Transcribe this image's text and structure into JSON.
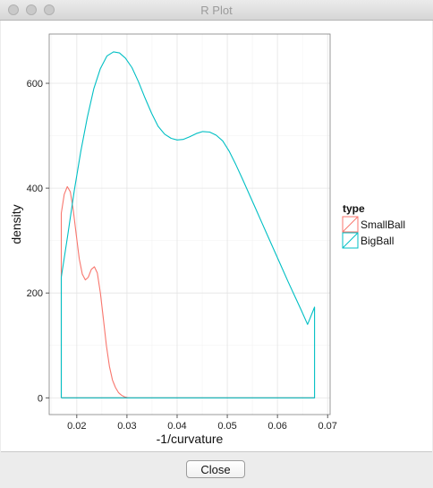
{
  "window": {
    "title": "R Plot",
    "close_button_label": "Close"
  },
  "chart_data": {
    "type": "line",
    "subtype": "density",
    "title": "",
    "xlabel": "-1/curvature",
    "ylabel": "density",
    "xlim": [
      0.0145,
      0.0705
    ],
    "ylim": [
      -32,
      694
    ],
    "xticks": [
      0.02,
      0.03,
      0.04,
      0.05,
      0.06,
      0.07
    ],
    "xtick_labels": [
      "0.02",
      "0.03",
      "0.04",
      "0.05",
      "0.06",
      "0.07"
    ],
    "yticks": [
      0,
      200,
      400,
      600
    ],
    "ytick_labels": [
      "0",
      "200",
      "400",
      "600"
    ],
    "grid": true,
    "legend": {
      "title": "type",
      "position": "right",
      "entries": [
        "SmallBall",
        "BigBall"
      ]
    },
    "colors": {
      "SmallBall": "#F8766D",
      "BigBall": "#00BFC4"
    },
    "series": [
      {
        "name": "SmallBall",
        "x": [
          0.0169,
          0.0169,
          0.0175,
          0.0181,
          0.0187,
          0.0193,
          0.0199,
          0.0205,
          0.0211,
          0.0217,
          0.0223,
          0.0229,
          0.0235,
          0.0241,
          0.0247,
          0.0253,
          0.0259,
          0.0265,
          0.0271,
          0.0277,
          0.0283,
          0.0289,
          0.0295,
          0.0301,
          0.0307,
          0.0313,
          0.0325,
          0.0674,
          0.0674,
          0.0169
        ],
        "y": [
          0,
          352,
          388,
          403,
          393,
          358,
          310,
          265,
          236,
          225,
          230,
          245,
          250,
          238,
          200,
          150,
          100,
          60,
          34,
          20,
          10,
          5,
          2,
          0.5,
          0,
          0,
          0,
          0,
          0,
          0
        ]
      },
      {
        "name": "BigBall",
        "x": [
          0.0169,
          0.0169,
          0.0182,
          0.0195,
          0.0208,
          0.0221,
          0.0234,
          0.0247,
          0.026,
          0.0273,
          0.0285,
          0.0297,
          0.031,
          0.0323,
          0.0336,
          0.0349,
          0.0362,
          0.0375,
          0.0388,
          0.04,
          0.0412,
          0.0425,
          0.0438,
          0.0451,
          0.0465,
          0.0478,
          0.0491,
          0.0504,
          0.0517,
          0.053,
          0.0543,
          0.0556,
          0.0569,
          0.0582,
          0.0595,
          0.0608,
          0.0621,
          0.0634,
          0.0647,
          0.066,
          0.0674,
          0.0674,
          0.0169
        ],
        "y": [
          0,
          230,
          310,
          395,
          470,
          535,
          590,
          628,
          652,
          660,
          658,
          648,
          630,
          603,
          572,
          543,
          518,
          503,
          495,
          492,
          493,
          498,
          504,
          508,
          507,
          501,
          490,
          470,
          445,
          418,
          390,
          362,
          334,
          306,
          278,
          250,
          222,
          195,
          168,
          140,
          173,
          0,
          0
        ]
      }
    ]
  }
}
